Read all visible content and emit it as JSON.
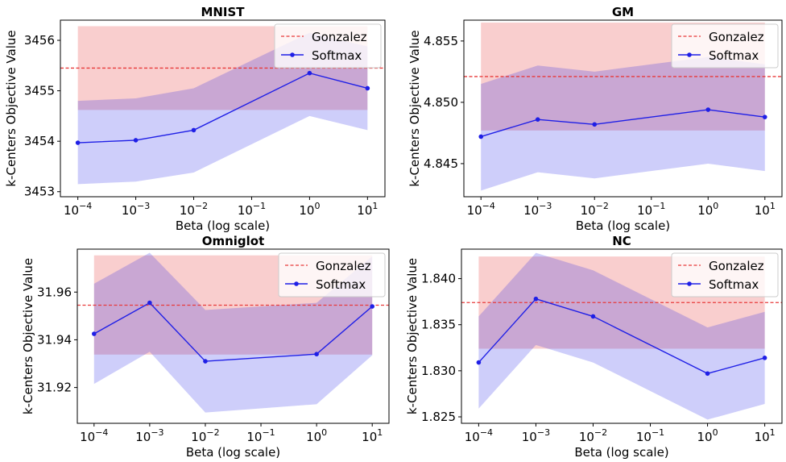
{
  "chart_data": [
    {
      "type": "line",
      "title": "MNIST",
      "xlabel": "Beta (log scale)",
      "ylabel": "k-Centers Objective Value",
      "xscale": "log",
      "xlim": [
        5e-05,
        20
      ],
      "ylim": [
        3452.9,
        3456.4
      ],
      "xticks": [
        0.0001,
        0.001,
        0.01,
        0.1,
        1,
        10
      ],
      "xtick_labels": [
        {
          "base": "10",
          "exp": "−4"
        },
        {
          "base": "10",
          "exp": "−3"
        },
        {
          "base": "10",
          "exp": "−2"
        },
        {
          "base": "10",
          "exp": "−1"
        },
        {
          "base": "10",
          "exp": "0"
        },
        {
          "base": "10",
          "exp": "1"
        }
      ],
      "yticks": [
        3453,
        3454,
        3455,
        3456
      ],
      "ytick_labels": [
        "3453",
        "3454",
        "3455",
        "3456"
      ],
      "legend": "top-right",
      "grid": false,
      "gonzalez": {
        "name": "Gonzalez",
        "value": 3455.45,
        "band": [
          3454.62,
          3456.28
        ],
        "color": "#e83a3a"
      },
      "softmax": {
        "name": "Softmax",
        "color": "#1f1fe6",
        "x": [
          0.0001,
          0.001,
          0.01,
          1,
          10
        ],
        "y": [
          3453.97,
          3454.02,
          3454.22,
          3455.35,
          3455.05
        ],
        "lower": [
          3453.15,
          3453.2,
          3453.38,
          3454.5,
          3454.22
        ],
        "upper": [
          3454.8,
          3454.85,
          3455.05,
          3456.15,
          3455.88
        ]
      }
    },
    {
      "type": "line",
      "title": "GM",
      "xlabel": "Beta (log scale)",
      "ylabel": "k-Centers Objective Value",
      "xscale": "log",
      "xlim": [
        5e-05,
        20
      ],
      "ylim": [
        4.8423,
        4.8567
      ],
      "xticks": [
        0.0001,
        0.001,
        0.01,
        0.1,
        1,
        10
      ],
      "xtick_labels": [
        {
          "base": "10",
          "exp": "−4"
        },
        {
          "base": "10",
          "exp": "−3"
        },
        {
          "base": "10",
          "exp": "−2"
        },
        {
          "base": "10",
          "exp": "−1"
        },
        {
          "base": "10",
          "exp": "0"
        },
        {
          "base": "10",
          "exp": "1"
        }
      ],
      "yticks": [
        4.845,
        4.85,
        4.855
      ],
      "ytick_labels": [
        "4.845",
        "4.850",
        "4.855"
      ],
      "legend": "top-right",
      "grid": false,
      "gonzalez": {
        "name": "Gonzalez",
        "value": 4.8521,
        "band": [
          4.8477,
          4.8565
        ],
        "color": "#e83a3a"
      },
      "softmax": {
        "name": "Softmax",
        "color": "#1f1fe6",
        "x": [
          0.0001,
          0.001,
          0.01,
          1,
          10
        ],
        "y": [
          4.8472,
          4.8486,
          4.8482,
          4.8494,
          4.8488
        ],
        "lower": [
          4.8428,
          4.8443,
          4.8438,
          4.845,
          4.8444
        ],
        "upper": [
          4.8515,
          4.853,
          4.8525,
          4.8537,
          4.8531
        ]
      }
    },
    {
      "type": "line",
      "title": "Omniglot",
      "xlabel": "Beta (log scale)",
      "ylabel": "k-Centers Objective Value",
      "xscale": "log",
      "xlim": [
        5e-05,
        20
      ],
      "ylim": [
        31.905,
        31.978
      ],
      "xticks": [
        0.0001,
        0.001,
        0.01,
        0.1,
        1,
        10
      ],
      "xtick_labels": [
        {
          "base": "10",
          "exp": "−4"
        },
        {
          "base": "10",
          "exp": "−3"
        },
        {
          "base": "10",
          "exp": "−2"
        },
        {
          "base": "10",
          "exp": "−1"
        },
        {
          "base": "10",
          "exp": "0"
        },
        {
          "base": "10",
          "exp": "1"
        }
      ],
      "yticks": [
        31.92,
        31.94,
        31.96
      ],
      "ytick_labels": [
        "31.92",
        "31.94",
        "31.96"
      ],
      "legend": "top-right",
      "grid": false,
      "gonzalez": {
        "name": "Gonzalez",
        "value": 31.9545,
        "band": [
          31.9338,
          31.9754
        ],
        "color": "#e83a3a"
      },
      "softmax": {
        "name": "Softmax",
        "color": "#1f1fe6",
        "x": [
          0.0001,
          0.001,
          0.01,
          1,
          10
        ],
        "y": [
          31.9425,
          31.9555,
          31.931,
          31.934,
          31.954
        ],
        "lower": [
          31.9215,
          31.935,
          31.9095,
          31.913,
          31.9335
        ],
        "upper": [
          31.9635,
          31.9765,
          31.9525,
          31.9555,
          31.975
        ]
      }
    },
    {
      "type": "line",
      "title": "NC",
      "xlabel": "Beta (log scale)",
      "ylabel": "k-Centers Objective Value",
      "xscale": "log",
      "xlim": [
        5e-05,
        20
      ],
      "ylim": [
        1.8243,
        1.8432
      ],
      "xticks": [
        0.0001,
        0.001,
        0.01,
        0.1,
        1,
        10
      ],
      "xtick_labels": [
        {
          "base": "10",
          "exp": "−4"
        },
        {
          "base": "10",
          "exp": "−3"
        },
        {
          "base": "10",
          "exp": "−2"
        },
        {
          "base": "10",
          "exp": "−1"
        },
        {
          "base": "10",
          "exp": "0"
        },
        {
          "base": "10",
          "exp": "1"
        }
      ],
      "yticks": [
        1.825,
        1.83,
        1.835,
        1.84
      ],
      "ytick_labels": [
        "1.825",
        "1.830",
        "1.835",
        "1.840"
      ],
      "legend": "top-right",
      "grid": false,
      "gonzalez": {
        "name": "Gonzalez",
        "value": 1.8374,
        "band": [
          1.8324,
          1.8424
        ],
        "color": "#e83a3a"
      },
      "softmax": {
        "name": "Softmax",
        "color": "#1f1fe6",
        "x": [
          0.0001,
          0.001,
          0.01,
          1,
          10
        ],
        "y": [
          1.8309,
          1.8378,
          1.8359,
          1.8297,
          1.8314
        ],
        "lower": [
          1.8259,
          1.8328,
          1.8309,
          1.8247,
          1.8264
        ],
        "upper": [
          1.8359,
          1.8428,
          1.8409,
          1.8347,
          1.8364
        ]
      }
    }
  ]
}
